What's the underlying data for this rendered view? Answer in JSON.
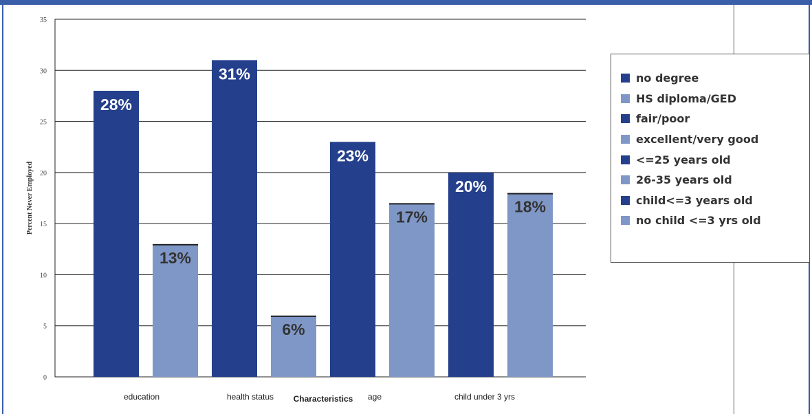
{
  "chart_data": {
    "type": "bar",
    "xlabel": "Characteristics",
    "ylabel": "Percent Never Employed",
    "ylim": [
      0,
      35
    ],
    "yticks": [
      "0",
      "5",
      "10",
      "15",
      "20",
      "25",
      "30",
      "35"
    ],
    "categories": [
      "education",
      "health status",
      "age",
      "child under 3 yrs"
    ],
    "bars": [
      {
        "group": "education",
        "series": "no degree",
        "value": 28,
        "label": "28%",
        "tone": "dark"
      },
      {
        "group": "education",
        "series": "HS diploma/GED",
        "value": 13,
        "label": "13%",
        "tone": "light"
      },
      {
        "group": "health status",
        "series": "fair/poor",
        "value": 31,
        "label": "31%",
        "tone": "dark"
      },
      {
        "group": "health status",
        "series": "excellent/very good",
        "value": 6,
        "label": "6%",
        "tone": "light"
      },
      {
        "group": "age",
        "series": "<=25 years old",
        "value": 23,
        "label": "23%",
        "tone": "dark"
      },
      {
        "group": "age",
        "series": "26-35 years old",
        "value": 17,
        "label": "17%",
        "tone": "light"
      },
      {
        "group": "child under 3 yrs",
        "series": "child<=3 years old",
        "value": 20,
        "label": "20%",
        "tone": "dark"
      },
      {
        "group": "child under 3 yrs",
        "series": "no child <=3 yrs old",
        "value": 18,
        "label": "18%",
        "tone": "light"
      }
    ],
    "legend": [
      {
        "label": "no degree",
        "tone": "dark"
      },
      {
        "label": "HS diploma/GED",
        "tone": "light"
      },
      {
        "label": "fair/poor",
        "tone": "dark"
      },
      {
        "label": "excellent/very good",
        "tone": "light"
      },
      {
        "label": "<=25 years old",
        "tone": "dark"
      },
      {
        "label": "26-35 years old",
        "tone": "light"
      },
      {
        "label": "child<=3 years old",
        "tone": "dark"
      },
      {
        "label": "no child <=3 yrs old",
        "tone": "light"
      }
    ],
    "legend_position": "right",
    "grid": true,
    "colors": {
      "dark": "#243f8c",
      "light": "#7f97c7",
      "dark_label": "#ffffff",
      "light_label": "#333333",
      "grid": "#222222"
    }
  }
}
